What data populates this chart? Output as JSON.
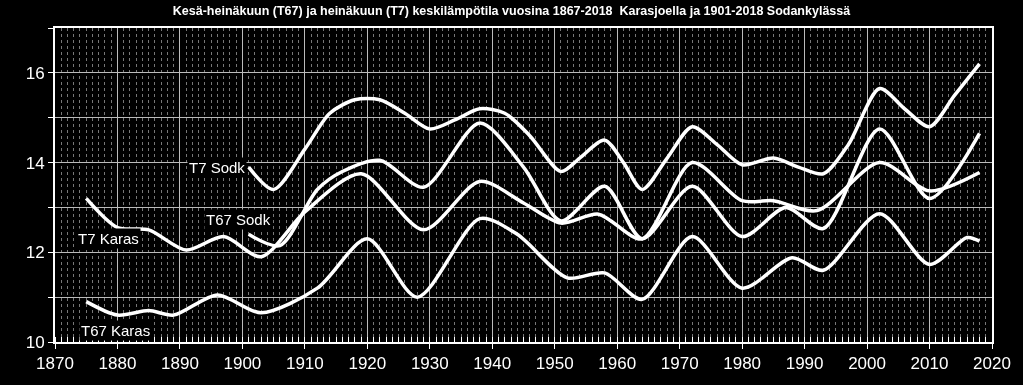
{
  "chart_data": {
    "type": "line",
    "title": "Kesä-heinäkuun (T67) ja heinäkuun (T7) keskilämpötila vuosina 1867-2018  Karasjoella ja 1901-2018 Sodankylässä",
    "series": [
      {
        "name": "T7 Sodk",
        "color": "#ffffff",
        "x": [
          1901,
          1905,
          1910,
          1914,
          1918,
          1922,
          1926,
          1930,
          1934,
          1938,
          1942,
          1946,
          1951,
          1954,
          1958,
          1961,
          1964,
          1968,
          1972,
          1976,
          1980,
          1985,
          1989,
          1993,
          1997,
          2002,
          2006,
          2010,
          2014,
          2018
        ],
        "values": [
          13.9,
          13.4,
          14.3,
          15.1,
          15.4,
          15.4,
          15.1,
          14.75,
          14.95,
          15.2,
          15.1,
          14.6,
          13.8,
          14.1,
          14.5,
          14.0,
          13.4,
          14.1,
          14.8,
          14.4,
          13.95,
          14.1,
          13.9,
          13.75,
          14.4,
          15.65,
          15.2,
          14.8,
          15.5,
          16.2
        ]
      },
      {
        "name": "T67 Sodk",
        "color": "#ffffff",
        "x": [
          1901,
          1906,
          1912,
          1916,
          1922,
          1929,
          1938,
          1945,
          1951,
          1958,
          1964,
          1972,
          1980,
          1987,
          1993,
          2002,
          2010,
          2018
        ],
        "values": [
          12.4,
          12.15,
          13.4,
          13.8,
          14.05,
          13.45,
          14.88,
          13.9,
          12.7,
          13.47,
          12.3,
          13.47,
          12.35,
          13.0,
          12.53,
          14.75,
          13.2,
          14.65
        ]
      },
      {
        "name": "T7 Karas",
        "color": "#ffffff",
        "x": [
          1875,
          1880,
          1885,
          1891,
          1897,
          1903,
          1910,
          1919,
          1929,
          1938,
          1945,
          1951,
          1957,
          1964,
          1972,
          1980,
          1985,
          1992,
          2002,
          2010,
          2018
        ],
        "values": [
          13.2,
          12.55,
          12.5,
          12.05,
          12.35,
          11.9,
          12.9,
          13.75,
          12.5,
          13.58,
          13.1,
          12.65,
          12.85,
          12.3,
          14.0,
          13.15,
          13.15,
          12.93,
          14.0,
          13.37,
          13.78
        ]
      },
      {
        "name": "T67 Karas",
        "color": "#ffffff",
        "x": [
          1875,
          1880,
          1885,
          1889,
          1896,
          1903,
          1912,
          1920,
          1928,
          1938,
          1944,
          1952,
          1958,
          1964,
          1972,
          1980,
          1988,
          1993,
          2002,
          2010,
          2016,
          2018
        ],
        "values": [
          10.9,
          10.6,
          10.7,
          10.6,
          11.05,
          10.65,
          11.2,
          12.3,
          11.0,
          12.75,
          12.4,
          11.43,
          11.54,
          10.95,
          12.35,
          11.2,
          11.88,
          11.6,
          12.86,
          11.73,
          12.33,
          12.25
        ]
      }
    ],
    "xlim": [
      1870,
      2020
    ],
    "xticks": [
      1870,
      1880,
      1890,
      1900,
      1910,
      1920,
      1930,
      1940,
      1950,
      1960,
      1970,
      1980,
      1990,
      2000,
      2010,
      2020
    ],
    "ylim": [
      10,
      17
    ],
    "yticks": [
      10,
      {
        "value": 11,
        "label": null
      },
      12,
      {
        "value": 13,
        "label": null
      },
      14,
      {
        "value": 15,
        "label": null
      },
      16,
      {
        "value": 17,
        "label": null
      }
    ],
    "grid": true,
    "legend": false,
    "marker": "none",
    "line_style": "solid"
  }
}
